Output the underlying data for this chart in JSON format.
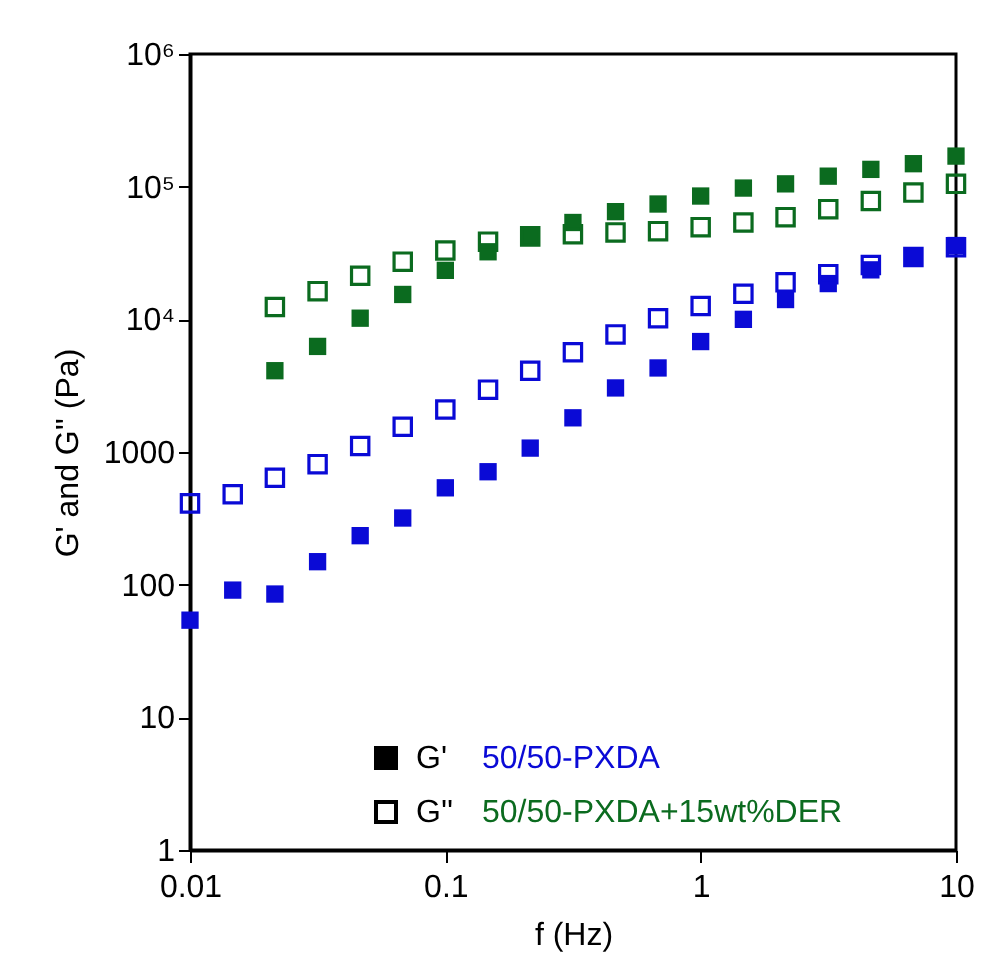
{
  "chart_data": {
    "type": "scatter",
    "xlabel": "f (Hz)",
    "ylabel": "G' and G'' (Pa)",
    "log": "xy",
    "marker": "square",
    "grid": false,
    "xlim": [
      0.01,
      10
    ],
    "xticks": [
      0.01,
      0.1,
      1,
      10
    ],
    "ylim": [
      1,
      1000000
    ],
    "yticks": [
      1,
      10,
      100,
      1000,
      {
        "value": 10000,
        "label": "10⁴"
      },
      {
        "value": 100000,
        "label": "10⁵"
      },
      {
        "value": 1000000,
        "label": "10⁶"
      }
    ],
    "annotations": [
      "G'",
      "G''",
      "50/50-PXDA",
      "50/50-PXDA+15wt%DER"
    ],
    "series": [
      {
        "color": "#0a0ad6",
        "x": [
          0.01,
          0.0147,
          0.0215,
          0.0316,
          0.0464,
          0.0681,
          0.1,
          0.147,
          0.215,
          0.316,
          0.464,
          0.681,
          1,
          1.47,
          2.15,
          3.16,
          4.64,
          6.81,
          10
        ],
        "values": [
          54,
          91,
          85,
          149,
          234,
          318,
          537,
          710,
          1070,
          1810,
          3040,
          4300,
          6800,
          10000,
          14100,
          18600,
          23600,
          29000,
          36000
        ]
      },
      {
        "color": "#0a0ad6",
        "marker": "square",
        "x": [
          0.01,
          0.0147,
          0.0215,
          0.0316,
          0.0464,
          0.0681,
          0.1,
          0.147,
          0.215,
          0.316,
          0.464,
          0.681,
          1,
          1.47,
          2.15,
          3.16,
          4.64,
          6.81,
          10
        ],
        "values": [
          410,
          480,
          640,
          810,
          1110,
          1550,
          2090,
          2950,
          4100,
          5650,
          7700,
          10200,
          12600,
          15600,
          19000,
          21900,
          25700,
          29500,
          35000
        ]
      },
      {
        "color": "#0b6b1f",
        "x": [
          0.0215,
          0.0316,
          0.0464,
          0.0681,
          0.1,
          0.147,
          0.215,
          0.316,
          0.464,
          0.681,
          1,
          1.47,
          2.15,
          3.16,
          4.64,
          6.81,
          10
        ],
        "values": [
          4100,
          6250,
          10200,
          15400,
          23400,
          32300,
          42200,
          53700,
          64800,
          74000,
          85000,
          97600,
          105000,
          120000,
          135000,
          149000,
          170000
        ]
      },
      {
        "color": "#0b6b1f",
        "marker": "square",
        "x": [
          0.0215,
          0.0316,
          0.0464,
          0.0681,
          0.1,
          0.147,
          0.215,
          0.316,
          0.464,
          0.681,
          1,
          1.47,
          2.15,
          3.16,
          4.64,
          6.81,
          10
        ],
        "values": [
          12400,
          16300,
          21300,
          27200,
          33000,
          38500,
          42200,
          43800,
          45200,
          46200,
          49500,
          53700,
          58900,
          67700,
          77900,
          90200,
          105000
        ]
      }
    ]
  }
}
